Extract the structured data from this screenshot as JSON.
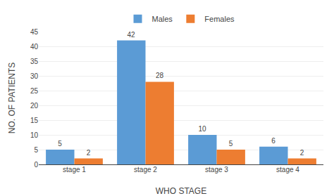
{
  "chart_data": {
    "type": "bar",
    "categories": [
      "stage 1",
      "stage 2",
      "stage 3",
      "stage 4"
    ],
    "series": [
      {
        "name": "Males",
        "color": "#5B9BD5",
        "values": [
          5,
          42,
          10,
          6
        ]
      },
      {
        "name": "Females",
        "color": "#ED7D31",
        "values": [
          2,
          28,
          5,
          2
        ]
      }
    ],
    "xlabel": "WHO STAGE",
    "ylabel": "NO. OF PATIENTS",
    "ylim": [
      0,
      45
    ],
    "yticks": [
      0,
      5,
      10,
      15,
      20,
      25,
      30,
      35,
      40,
      45
    ],
    "grid": true,
    "legend": "top",
    "data_labels": true
  }
}
